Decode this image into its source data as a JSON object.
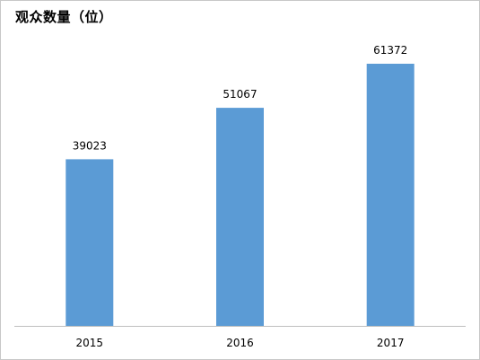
{
  "chart_data": {
    "type": "bar",
    "title": "观众数量（位）",
    "categories": [
      "2015",
      "2016",
      "2017"
    ],
    "values": [
      39023,
      51067,
      61372
    ],
    "data_labels": [
      "39023",
      "51067",
      "61372"
    ],
    "ylim": [
      0,
      70000
    ],
    "grid": false,
    "legend": "none",
    "xlabel": "",
    "ylabel": "",
    "bar_color": "#5b9bd5",
    "axis_color": "#bfbfbf"
  }
}
